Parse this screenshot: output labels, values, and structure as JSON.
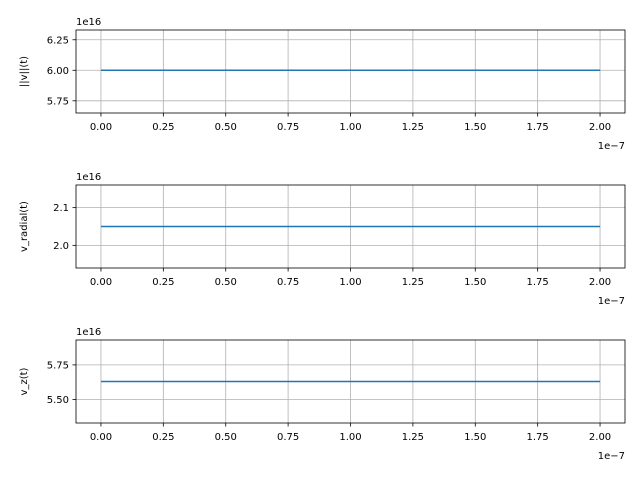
{
  "chart_data": [
    {
      "type": "line",
      "ylabel": "||v||(t)",
      "x_multiplier": "1e−7",
      "y_multiplier": "1e16",
      "xlim": [
        -0.1,
        2.1
      ],
      "ylim": [
        5.65,
        6.33
      ],
      "xticks": [
        "0.00",
        "0.25",
        "0.50",
        "0.75",
        "1.00",
        "1.25",
        "1.50",
        "1.75",
        "2.00"
      ],
      "xtick_values": [
        0,
        0.25,
        0.5,
        0.75,
        1.0,
        1.25,
        1.5,
        1.75,
        2.0
      ],
      "yticks": [
        "5.75",
        "6.00",
        "6.25"
      ],
      "ytick_values": [
        5.75,
        6.0,
        6.25
      ],
      "grid": true,
      "series": [
        {
          "x": [
            0,
            2.0
          ],
          "y": [
            6.0,
            6.0
          ],
          "color": "#1f77b4"
        }
      ]
    },
    {
      "type": "line",
      "ylabel": "v_radial(t)",
      "x_multiplier": "1e−7",
      "y_multiplier": "1e16",
      "xlim": [
        -0.1,
        2.1
      ],
      "ylim": [
        1.94,
        2.16
      ],
      "xticks": [
        "0.00",
        "0.25",
        "0.50",
        "0.75",
        "1.00",
        "1.25",
        "1.50",
        "1.75",
        "2.00"
      ],
      "xtick_values": [
        0,
        0.25,
        0.5,
        0.75,
        1.0,
        1.25,
        1.5,
        1.75,
        2.0
      ],
      "yticks": [
        "2.0",
        "2.1"
      ],
      "ytick_values": [
        2.0,
        2.1
      ],
      "grid": true,
      "series": [
        {
          "x": [
            0,
            2.0
          ],
          "y": [
            2.05,
            2.05
          ],
          "color": "#1f77b4"
        }
      ]
    },
    {
      "type": "line",
      "ylabel": "v_z(t)",
      "x_multiplier": "1e−7",
      "y_multiplier": "1e16",
      "xlim": [
        -0.1,
        2.1
      ],
      "ylim": [
        5.33,
        5.93
      ],
      "xticks": [
        "0.00",
        "0.25",
        "0.50",
        "0.75",
        "1.00",
        "1.25",
        "1.50",
        "1.75",
        "2.00"
      ],
      "xtick_values": [
        0,
        0.25,
        0.5,
        0.75,
        1.0,
        1.25,
        1.5,
        1.75,
        2.0
      ],
      "yticks": [
        "5.50",
        "5.75"
      ],
      "ytick_values": [
        5.5,
        5.75
      ],
      "grid": true,
      "series": [
        {
          "x": [
            0,
            2.0
          ],
          "y": [
            5.63,
            5.63
          ],
          "color": "#1f77b4"
        }
      ]
    }
  ],
  "colors": {
    "line": "#1f77b4",
    "grid": "#b0b0b0",
    "axes": "#000000"
  }
}
